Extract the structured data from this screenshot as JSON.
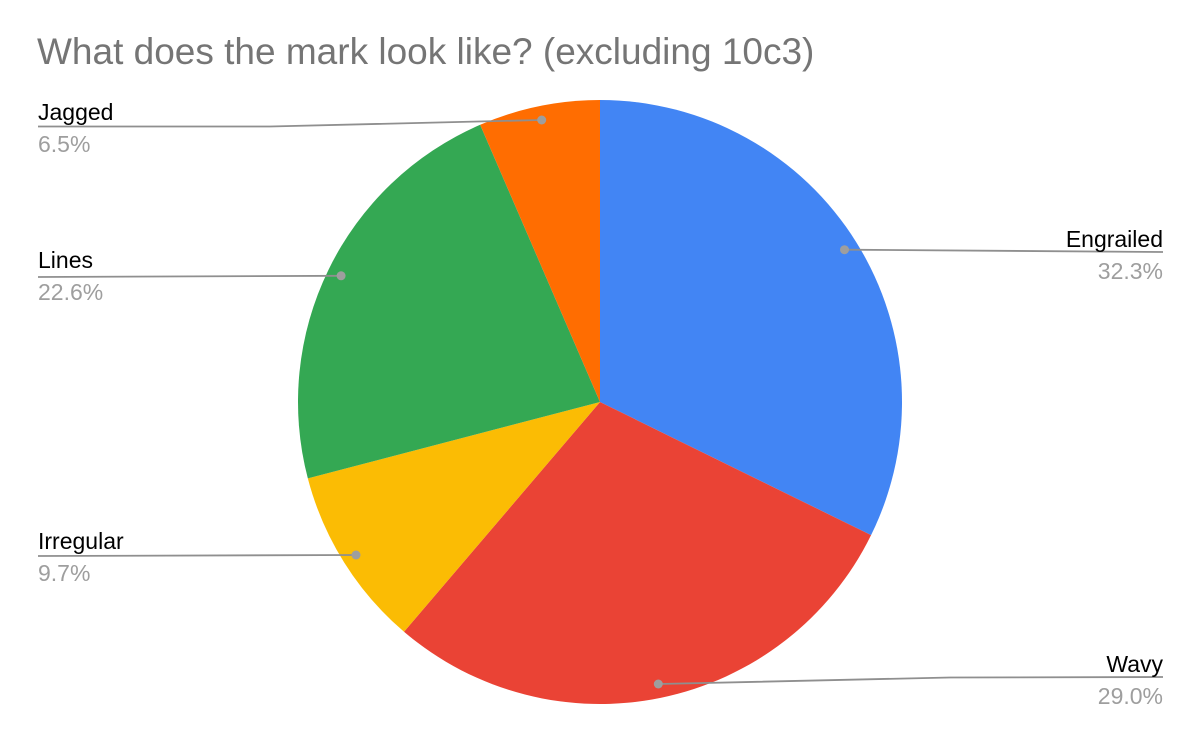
{
  "title": "What does the mark look like? (excluding 10c3)",
  "chart_data": {
    "type": "pie",
    "title": "What does the mark look like? (excluding 10c3)",
    "start_angle_deg": 0,
    "direction": "clockwise",
    "legend_position": "external-callout-labels",
    "slices": [
      {
        "label": "Engrailed",
        "value": 32.3,
        "pct_label": "32.3%",
        "color": "#4285F4",
        "callout_side": "right"
      },
      {
        "label": "Wavy",
        "value": 29.0,
        "pct_label": "29.0%",
        "color": "#EA4335",
        "callout_side": "right"
      },
      {
        "label": "Irregular",
        "value": 9.7,
        "pct_label": "9.7%",
        "color": "#FBBC04",
        "callout_side": "left"
      },
      {
        "label": "Lines",
        "value": 22.6,
        "pct_label": "22.6%",
        "color": "#34A853",
        "callout_side": "left"
      },
      {
        "label": "Jagged",
        "value": 6.5,
        "pct_label": "6.5%",
        "color": "#FF6D01",
        "callout_side": "left"
      }
    ]
  },
  "style": {
    "title_color": "#757575",
    "label_color": "#000000",
    "percent_color": "#9e9e9e",
    "leader_line_color": "#8f8f8f",
    "leader_dot_color": "#9e9e9e",
    "background": "#ffffff"
  }
}
